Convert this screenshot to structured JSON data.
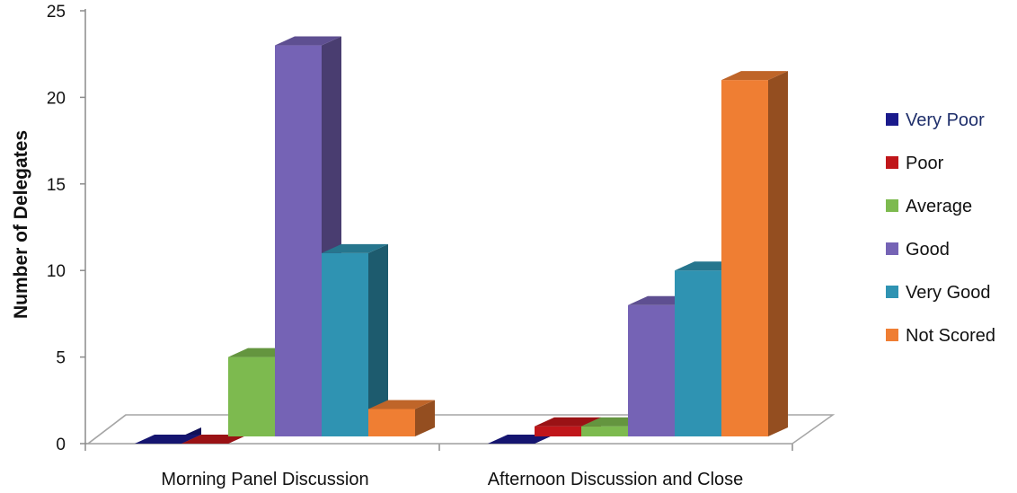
{
  "chart_data": {
    "type": "bar",
    "title": "",
    "xlabel": "",
    "ylabel": "Number of Delegates",
    "ylim": [
      0,
      25
    ],
    "yticks": [
      0,
      5,
      10,
      15,
      20,
      25
    ],
    "categories": [
      "Morning Panel Discussion",
      "Afternoon Discussion and Close"
    ],
    "series": [
      {
        "name": "Very Poor",
        "color": "#1a1a8c",
        "values": [
          0,
          0
        ]
      },
      {
        "name": "Poor",
        "color": "#c0161a",
        "values": [
          0,
          1
        ]
      },
      {
        "name": "Average",
        "color": "#7dba4f",
        "values": [
          5,
          1
        ]
      },
      {
        "name": "Good",
        "color": "#7563b5",
        "values": [
          23,
          8
        ]
      },
      {
        "name": "Very Good",
        "color": "#2f93b2",
        "values": [
          11,
          10
        ]
      },
      {
        "name": "Not Scored",
        "color": "#ef7e33",
        "values": [
          2,
          21
        ]
      }
    ],
    "legend_position": "right",
    "grid": false,
    "style": "3d-column"
  }
}
